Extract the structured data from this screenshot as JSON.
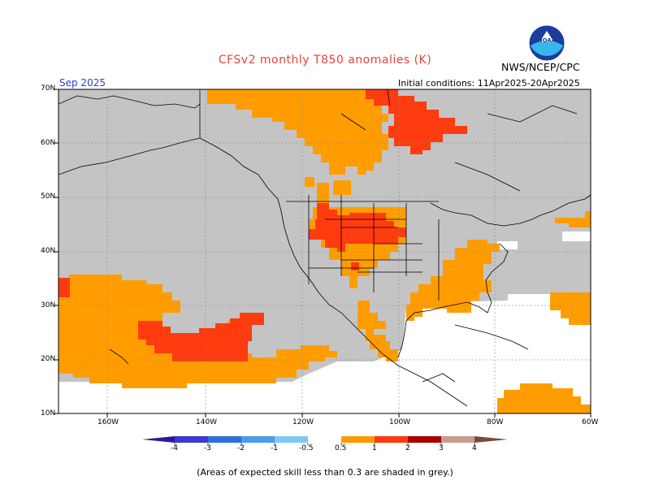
{
  "header": {
    "title": "CFSv2 monthly T850 anomalies (K)",
    "month": "Sep 2025",
    "initial_conditions": "Initial conditions: 11Apr2025-20Apr2025",
    "agency": "NWS/NCEP/CPC",
    "logo_icon": "noaa-logo-icon"
  },
  "axes": {
    "lat_labels": [
      "70N",
      "60N",
      "50N",
      "40N",
      "30N",
      "20N",
      "10N"
    ],
    "lon_labels": [
      "160W",
      "140W",
      "120W",
      "100W",
      "80W",
      "60W"
    ]
  },
  "legend": {
    "labels": [
      "-4",
      "-3",
      "-2",
      "-1",
      "-0.5",
      "0.5",
      "1",
      "2",
      "3",
      "4"
    ],
    "colors": [
      "#2a1a9a",
      "#3a3ad0",
      "#2e6fdc",
      "#4a9ee8",
      "#80c6f5",
      "#ffffff",
      "#ff9900",
      "#ff3a10",
      "#a80000",
      "#c89c8c",
      "#7a4a3c"
    ]
  },
  "colors": {
    "grey_low_skill": "#c4c4c4",
    "anom_05_1": "#ff9d00",
    "anom_1_2": "#ff3b10"
  },
  "footnote": "(Areas of expected skill less than 0.3 are shaded in grey.)"
}
